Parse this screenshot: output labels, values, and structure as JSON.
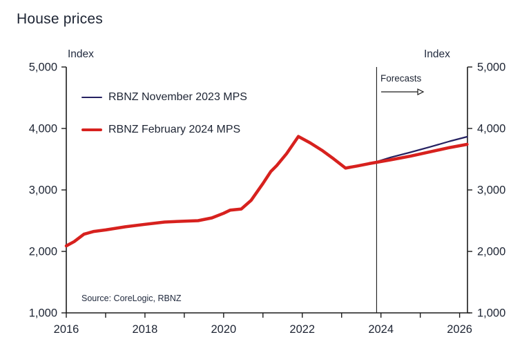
{
  "title": "House prices",
  "axes": {
    "left_unit": "Index",
    "right_unit": "Index",
    "y_tick_labels": [
      "5,000",
      "4,000",
      "3,000",
      "2,000",
      "1,000"
    ],
    "y_tick_values": [
      5000,
      4000,
      3000,
      2000,
      1000
    ],
    "x_tick_labels": [
      "2016",
      "2018",
      "2020",
      "2022",
      "2024",
      "2026"
    ],
    "x_labeled_years": [
      2016,
      2018,
      2020,
      2022,
      2024,
      2026
    ],
    "x_tick_years": [
      2016,
      2017,
      2018,
      2019,
      2020,
      2021,
      2022,
      2023,
      2024,
      2025,
      2026
    ]
  },
  "legend": {
    "items": [
      {
        "label": "RBNZ November 2023 MPS",
        "color": "#252161",
        "thickness": 2.5
      },
      {
        "label": "RBNZ February 2024 MPS",
        "color": "#D7211E",
        "thickness": 4.5
      }
    ]
  },
  "annotation": {
    "label": "Forecasts"
  },
  "source_note": "Source: CoreLogic, RBNZ",
  "colors": {
    "november_line": "#252161",
    "february_line": "#D7211E",
    "axis": "#1a1a1a",
    "text": "#1d2433"
  },
  "chart_data": {
    "type": "line",
    "title": "House prices",
    "ylabel": "Index",
    "xlim": [
      2016,
      2026.2
    ],
    "ylim": [
      1000,
      5000
    ],
    "y_tick_step": 1000,
    "grid": false,
    "legend_position": "top-left-inside",
    "forecast_divider_x": 2023.89,
    "series": [
      {
        "name": "RBNZ November 2023 MPS",
        "color": "#252161",
        "width": 2.2,
        "points": [
          [
            2023.55,
            3415
          ],
          [
            2023.9,
            3462
          ],
          [
            2024.25,
            3530
          ],
          [
            2024.75,
            3612
          ],
          [
            2025.25,
            3700
          ],
          [
            2025.75,
            3792
          ],
          [
            2026.19,
            3865
          ]
        ]
      },
      {
        "name": "RBNZ February 2024 MPS",
        "color": "#D7211E",
        "width": 4.5,
        "points": [
          [
            2016.0,
            2090
          ],
          [
            2016.2,
            2160
          ],
          [
            2016.45,
            2280
          ],
          [
            2016.7,
            2325
          ],
          [
            2017.0,
            2350
          ],
          [
            2017.5,
            2400
          ],
          [
            2018.0,
            2440
          ],
          [
            2018.5,
            2478
          ],
          [
            2019.0,
            2492
          ],
          [
            2019.35,
            2500
          ],
          [
            2019.7,
            2545
          ],
          [
            2020.0,
            2620
          ],
          [
            2020.17,
            2672
          ],
          [
            2020.45,
            2690
          ],
          [
            2020.7,
            2830
          ],
          [
            2021.0,
            3105
          ],
          [
            2021.2,
            3300
          ],
          [
            2021.35,
            3395
          ],
          [
            2021.6,
            3590
          ],
          [
            2021.9,
            3870
          ],
          [
            2022.2,
            3765
          ],
          [
            2022.5,
            3645
          ],
          [
            2022.8,
            3505
          ],
          [
            2023.1,
            3355
          ],
          [
            2023.4,
            3390
          ],
          [
            2023.7,
            3428
          ],
          [
            2023.9,
            3450
          ],
          [
            2024.25,
            3490
          ],
          [
            2024.75,
            3550
          ],
          [
            2025.25,
            3620
          ],
          [
            2025.75,
            3690
          ],
          [
            2026.19,
            3742
          ]
        ]
      }
    ]
  }
}
